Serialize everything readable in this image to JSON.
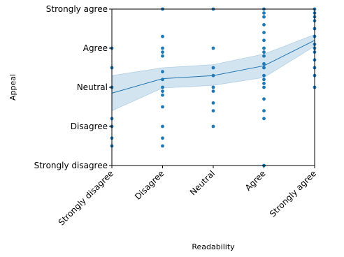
{
  "chart_data": {
    "type": "scatter",
    "xlabel": "Readability",
    "ylabel": "Appeal",
    "categories": [
      "Strongly disagree",
      "Disagree",
      "Neutral",
      "Agree",
      "Strongly agree"
    ],
    "x_tick_labels": [
      "Strongly disagree",
      "Disagree",
      "Neutral",
      "Agree",
      "Strongly agree"
    ],
    "y_tick_labels": [
      "Strongly disagree",
      "Disagree",
      "Neutral",
      "Agree",
      "Strongly agree"
    ],
    "ylim": [
      1,
      5
    ],
    "grid": false,
    "colors": {
      "series": "#1f77b4",
      "band": "#1f77b4"
    },
    "series": [
      {
        "type": "scatter",
        "points": [
          {
            "x": 1,
            "y": 1.5
          },
          {
            "x": 1,
            "y": 1.7
          },
          {
            "x": 1,
            "y": 2.0
          },
          {
            "x": 1,
            "y": 2.2
          },
          {
            "x": 1,
            "y": 3.0
          },
          {
            "x": 1,
            "y": 3.5
          },
          {
            "x": 1,
            "y": 4.0
          },
          {
            "x": 2,
            "y": 1.5
          },
          {
            "x": 2,
            "y": 1.7
          },
          {
            "x": 2,
            "y": 2.0
          },
          {
            "x": 2,
            "y": 2.5
          },
          {
            "x": 2,
            "y": 2.8
          },
          {
            "x": 2,
            "y": 2.9
          },
          {
            "x": 2,
            "y": 3.0
          },
          {
            "x": 2,
            "y": 3.2
          },
          {
            "x": 2,
            "y": 3.4
          },
          {
            "x": 2,
            "y": 3.8
          },
          {
            "x": 2,
            "y": 3.9
          },
          {
            "x": 2,
            "y": 4.0
          },
          {
            "x": 2,
            "y": 4.3
          },
          {
            "x": 2,
            "y": 5.0
          },
          {
            "x": 3,
            "y": 2.0
          },
          {
            "x": 3,
            "y": 2.4
          },
          {
            "x": 3,
            "y": 2.6
          },
          {
            "x": 3,
            "y": 2.9
          },
          {
            "x": 3,
            "y": 3.0
          },
          {
            "x": 3,
            "y": 3.3
          },
          {
            "x": 3,
            "y": 3.5
          },
          {
            "x": 3,
            "y": 4.0
          },
          {
            "x": 3,
            "y": 5.0
          },
          {
            "x": 4,
            "y": 1.0
          },
          {
            "x": 4,
            "y": 2.2
          },
          {
            "x": 4,
            "y": 2.4
          },
          {
            "x": 4,
            "y": 2.7
          },
          {
            "x": 4,
            "y": 3.0
          },
          {
            "x": 4,
            "y": 3.1
          },
          {
            "x": 4,
            "y": 3.2
          },
          {
            "x": 4,
            "y": 3.3
          },
          {
            "x": 4,
            "y": 3.5
          },
          {
            "x": 4,
            "y": 3.6
          },
          {
            "x": 4,
            "y": 3.8
          },
          {
            "x": 4,
            "y": 3.9
          },
          {
            "x": 4,
            "y": 4.0
          },
          {
            "x": 4,
            "y": 4.2
          },
          {
            "x": 4,
            "y": 4.4
          },
          {
            "x": 4,
            "y": 4.6
          },
          {
            "x": 4,
            "y": 4.8
          },
          {
            "x": 4,
            "y": 4.9
          },
          {
            "x": 4,
            "y": 5.0
          },
          {
            "x": 5,
            "y": 3.0
          },
          {
            "x": 5,
            "y": 3.3
          },
          {
            "x": 5,
            "y": 3.5
          },
          {
            "x": 5,
            "y": 3.7
          },
          {
            "x": 5,
            "y": 3.9
          },
          {
            "x": 5,
            "y": 4.0
          },
          {
            "x": 5,
            "y": 4.1
          },
          {
            "x": 5,
            "y": 4.3
          },
          {
            "x": 5,
            "y": 4.5
          },
          {
            "x": 5,
            "y": 4.7
          },
          {
            "x": 5,
            "y": 4.8
          },
          {
            "x": 5,
            "y": 4.9
          },
          {
            "x": 5,
            "y": 5.0
          }
        ]
      },
      {
        "type": "line",
        "x": [
          1,
          2,
          3,
          4,
          5
        ],
        "y": [
          2.85,
          3.22,
          3.3,
          3.55,
          4.2
        ],
        "ci_lower": [
          2.4,
          2.98,
          3.05,
          3.25,
          4.05
        ],
        "ci_upper": [
          3.3,
          3.5,
          3.58,
          3.85,
          4.35
        ]
      }
    ]
  }
}
